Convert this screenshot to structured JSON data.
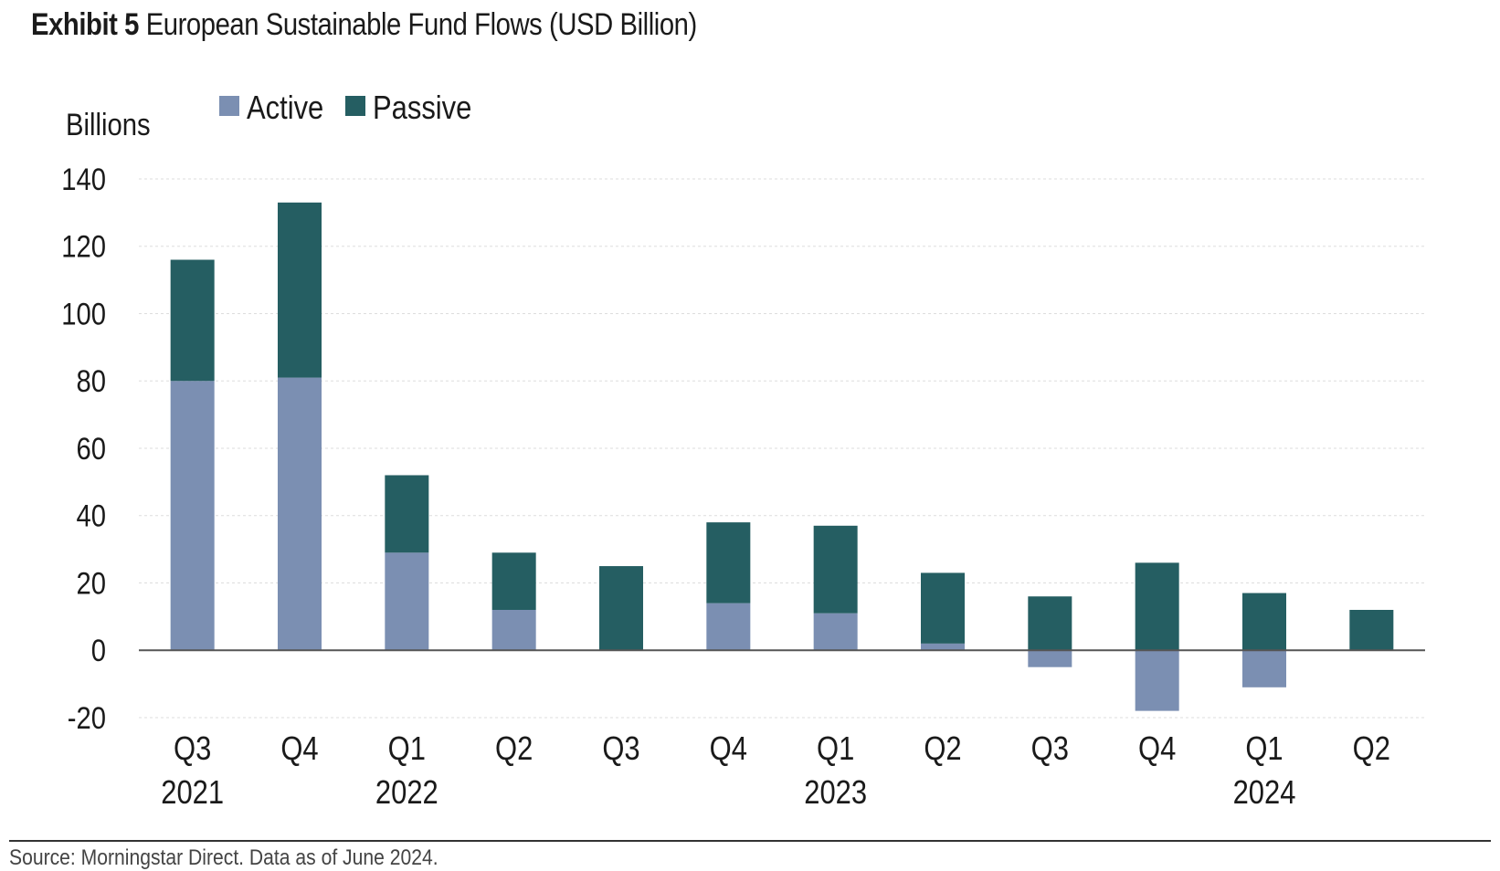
{
  "header": {
    "lead": "Exhibit 5",
    "title": "European Sustainable Fund Flows (USD Billion)"
  },
  "source": "Source: Morningstar Direct. Data as of June 2024.",
  "colors": {
    "active": "#7b8fb2",
    "passive": "#255e62",
    "zero_line": "#555555",
    "grid": "#dddddd"
  },
  "chart_data": {
    "type": "bar",
    "stacked": true,
    "ylabel": "Billions",
    "ylim": [
      -20,
      140
    ],
    "yticks": [
      -20,
      0,
      20,
      40,
      60,
      80,
      100,
      120,
      140
    ],
    "grid": true,
    "legend": "top-left",
    "categories": [
      "Q3",
      "Q4",
      "Q1",
      "Q2",
      "Q3",
      "Q4",
      "Q1",
      "Q2",
      "Q3",
      "Q4",
      "Q1",
      "Q2"
    ],
    "year_labels": [
      "2021",
      "",
      "2022",
      "",
      "",
      "",
      "2023",
      "",
      "",
      "",
      "2024",
      ""
    ],
    "series": [
      {
        "name": "Active",
        "values": [
          80,
          81,
          29,
          12,
          0,
          14,
          11,
          2,
          -5,
          -18,
          -11,
          0
        ]
      },
      {
        "name": "Passive",
        "values": [
          36,
          52,
          23,
          17,
          25,
          24,
          26,
          21,
          16,
          26,
          17,
          12
        ]
      }
    ]
  }
}
